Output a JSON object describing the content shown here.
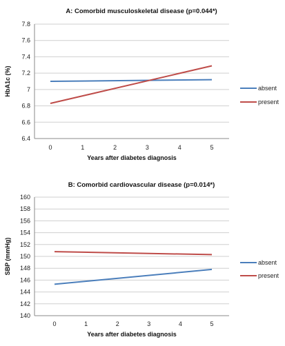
{
  "chart_data": [
    {
      "type": "line",
      "title": "A: Comorbid musculoskeletal disease (p=0.044*)",
      "xlabel": "Years after diabetes diagnosis",
      "ylabel": "HbA1c (%)",
      "x": [
        0,
        5
      ],
      "xticks": [
        "0",
        "1",
        "2",
        "3",
        "4",
        "5"
      ],
      "ylim": [
        6.4,
        7.8
      ],
      "yticks": [
        "6.4",
        "6.6",
        "6.8",
        "7",
        "7.2",
        "7.4",
        "7.6",
        "7.8"
      ],
      "grid": true,
      "legend_position": "right",
      "series": [
        {
          "name": "absent",
          "color": "#4a7ebb",
          "values": [
            7.1,
            7.12
          ]
        },
        {
          "name": "present",
          "color": "#be4b48",
          "values": [
            6.83,
            7.29
          ]
        }
      ]
    },
    {
      "type": "line",
      "title": "B: Comorbid cardiovascular disease (p=0.014*)",
      "xlabel": "Years after diabetes diagnosis",
      "ylabel": "SBP (mmHg)",
      "x": [
        0,
        5
      ],
      "xticks": [
        "0",
        "1",
        "2",
        "3",
        "4",
        "5"
      ],
      "ylim": [
        140,
        160
      ],
      "yticks": [
        "140",
        "142",
        "144",
        "146",
        "148",
        "150",
        "152",
        "154",
        "156",
        "158",
        "160"
      ],
      "grid": true,
      "legend_position": "right",
      "series": [
        {
          "name": "absent",
          "color": "#4a7ebb",
          "values": [
            145.3,
            147.8
          ]
        },
        {
          "name": "present",
          "color": "#be4b48",
          "values": [
            150.8,
            150.3
          ]
        }
      ]
    }
  ]
}
